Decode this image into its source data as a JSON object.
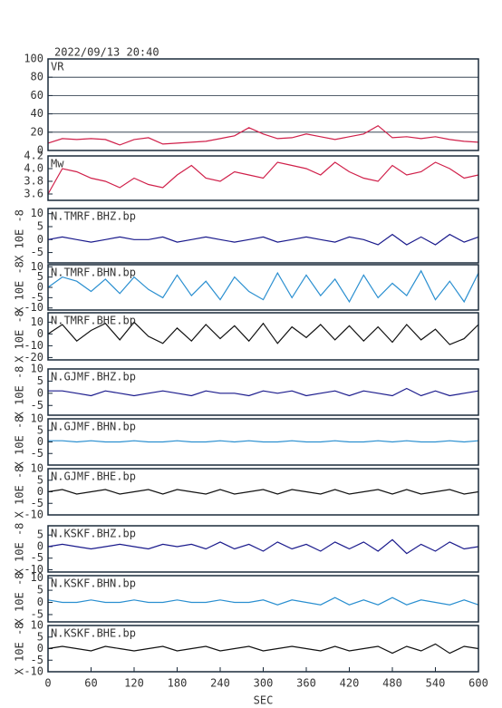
{
  "header": {
    "title": "2022/09/13 20:40"
  },
  "chart_data": [
    {
      "type": "line",
      "xlim": [
        0,
        600
      ],
      "ylim": [
        0,
        100
      ],
      "yticks": [
        0,
        20,
        40,
        60,
        80,
        100
      ],
      "grid": true,
      "x": [
        0,
        20,
        40,
        60,
        80,
        100,
        120,
        140,
        160,
        180,
        200,
        220,
        240,
        260,
        280,
        300,
        320,
        340,
        360,
        380,
        400,
        420,
        440,
        460,
        480,
        500,
        520,
        540,
        560,
        580,
        600
      ],
      "series": [
        {
          "name": "VR",
          "color": "#d0204a",
          "values": [
            8,
            13,
            12,
            13,
            12,
            6,
            12,
            14,
            7,
            8,
            9,
            10,
            13,
            16,
            25,
            18,
            13,
            14,
            18,
            15,
            12,
            15,
            18,
            27,
            14,
            15,
            13,
            15,
            12,
            10,
            9
          ]
        }
      ]
    },
    {
      "type": "line",
      "xlim": [
        0,
        600
      ],
      "ylim": [
        3.5,
        4.2
      ],
      "yticks": [
        {
          "value": 3.6,
          "label": "3.6"
        },
        {
          "value": 3.8,
          "label": "3.8"
        },
        {
          "value": 4.0,
          "label": "4.0"
        },
        {
          "value": 4.2,
          "label": "4.2"
        }
      ],
      "grid": false,
      "x": [
        0,
        20,
        40,
        60,
        80,
        100,
        120,
        140,
        160,
        180,
        200,
        220,
        240,
        260,
        280,
        300,
        320,
        340,
        360,
        380,
        400,
        420,
        440,
        460,
        480,
        500,
        520,
        540,
        560,
        580,
        600
      ],
      "series": [
        {
          "name": "Mw",
          "color": "#d0204a",
          "values": [
            3.6,
            4.0,
            3.95,
            3.85,
            3.8,
            3.7,
            3.85,
            3.75,
            3.7,
            3.9,
            4.05,
            3.85,
            3.8,
            3.95,
            3.9,
            3.85,
            4.1,
            4.05,
            4.0,
            3.9,
            4.1,
            3.95,
            3.85,
            3.8,
            4.05,
            3.9,
            3.95,
            4.1,
            4.0,
            3.85,
            3.9
          ]
        }
      ]
    },
    {
      "type": "line",
      "xlim": [
        0,
        600
      ],
      "ylim": [
        -9,
        12
      ],
      "yticks": [
        -5,
        0,
        5,
        10
      ],
      "grid": false,
      "ylabel": "X 10E -8",
      "x": [
        0,
        20,
        40,
        60,
        80,
        100,
        120,
        140,
        160,
        180,
        200,
        220,
        240,
        260,
        280,
        300,
        320,
        340,
        360,
        380,
        400,
        420,
        440,
        460,
        480,
        500,
        520,
        540,
        560,
        580,
        600
      ],
      "series": [
        {
          "name": "N.TMRF.BHZ.bp",
          "color": "#1a1a8c",
          "values": [
            0,
            1,
            0,
            -1,
            0,
            1,
            0,
            0,
            1,
            -1,
            0,
            1,
            0,
            -1,
            0,
            1,
            -1,
            0,
            1,
            0,
            -1,
            1,
            0,
            -2,
            2,
            -2,
            1,
            -2,
            2,
            -1,
            1
          ]
        }
      ]
    },
    {
      "type": "line",
      "xlim": [
        0,
        600
      ],
      "ylim": [
        -11,
        11
      ],
      "yticks": [
        -10,
        -5,
        0,
        5,
        10
      ],
      "grid": false,
      "ylabel": "X 10E -8",
      "x": [
        0,
        20,
        40,
        60,
        80,
        100,
        120,
        140,
        160,
        180,
        200,
        220,
        240,
        260,
        280,
        300,
        320,
        340,
        360,
        380,
        400,
        420,
        440,
        460,
        480,
        500,
        520,
        540,
        560,
        580,
        600
      ],
      "series": [
        {
          "name": "N.TMRF.BHN.bp",
          "color": "#2a8fd0",
          "values": [
            0,
            5,
            3,
            -2,
            4,
            -3,
            5,
            -1,
            -5,
            6,
            -4,
            3,
            -6,
            5,
            -2,
            -6,
            7,
            -5,
            6,
            -4,
            4,
            -7,
            6,
            -5,
            2,
            -4,
            8,
            -6,
            3,
            -7,
            7
          ]
        }
      ]
    },
    {
      "type": "line",
      "xlim": [
        0,
        600
      ],
      "ylim": [
        -22,
        18
      ],
      "yticks": [
        -20,
        -10,
        0,
        10
      ],
      "grid": false,
      "ylabel": "X 10E -8",
      "x": [
        0,
        20,
        40,
        60,
        80,
        100,
        120,
        140,
        160,
        180,
        200,
        220,
        240,
        260,
        280,
        300,
        320,
        340,
        360,
        380,
        400,
        420,
        440,
        460,
        480,
        500,
        520,
        540,
        560,
        580,
        600
      ],
      "series": [
        {
          "name": "N.TMRF.BHE.bp",
          "color": "#111111",
          "values": [
            0,
            8,
            -6,
            3,
            9,
            -5,
            10,
            -2,
            -8,
            5,
            -6,
            8,
            -4,
            7,
            -6,
            9,
            -8,
            6,
            -3,
            8,
            -5,
            7,
            -6,
            6,
            -7,
            8,
            -5,
            4,
            -9,
            -4,
            8
          ]
        }
      ]
    },
    {
      "type": "line",
      "xlim": [
        0,
        600
      ],
      "ylim": [
        -9,
        10
      ],
      "yticks": [
        -5,
        0,
        5,
        10
      ],
      "grid": false,
      "ylabel": "X 10E -8",
      "x": [
        0,
        20,
        40,
        60,
        80,
        100,
        120,
        140,
        160,
        180,
        200,
        220,
        240,
        260,
        280,
        300,
        320,
        340,
        360,
        380,
        400,
        420,
        440,
        460,
        480,
        500,
        520,
        540,
        560,
        580,
        600
      ],
      "series": [
        {
          "name": "N.GJMF.BHZ.bp",
          "color": "#1a1a8c",
          "values": [
            1,
            1,
            0,
            -1,
            1,
            0,
            -1,
            0,
            1,
            0,
            -1,
            1,
            0,
            0,
            -1,
            1,
            0,
            1,
            -1,
            0,
            1,
            -1,
            1,
            0,
            -1,
            2,
            -1,
            1,
            -1,
            0,
            1
          ]
        }
      ]
    },
    {
      "type": "line",
      "xlim": [
        0,
        600
      ],
      "ylim": [
        -10,
        10
      ],
      "yticks": [
        -5,
        0,
        5,
        10
      ],
      "grid": false,
      "ylabel": "X 10E -8",
      "x": [
        0,
        20,
        40,
        60,
        80,
        100,
        120,
        140,
        160,
        180,
        200,
        220,
        240,
        260,
        280,
        300,
        320,
        340,
        360,
        380,
        400,
        420,
        440,
        460,
        480,
        500,
        520,
        540,
        560,
        580,
        600
      ],
      "series": [
        {
          "name": "N.GJMF.BHN.bp",
          "color": "#2a8fd0",
          "values": [
            0.5,
            0.5,
            0,
            0.5,
            0,
            0,
            0.5,
            0,
            0,
            0.5,
            0,
            0,
            0.5,
            0,
            0.5,
            0,
            0,
            0.5,
            0,
            0,
            0.5,
            0,
            0,
            0.5,
            0,
            0.5,
            0,
            0,
            0.5,
            0,
            0.5
          ]
        }
      ]
    },
    {
      "type": "line",
      "xlim": [
        0,
        600
      ],
      "ylim": [
        -10,
        10
      ],
      "yticks": [
        -10,
        -5,
        0,
        5,
        10
      ],
      "grid": false,
      "ylabel": "X 10E -8",
      "x": [
        0,
        20,
        40,
        60,
        80,
        100,
        120,
        140,
        160,
        180,
        200,
        220,
        240,
        260,
        280,
        300,
        320,
        340,
        360,
        380,
        400,
        420,
        440,
        460,
        480,
        500,
        520,
        540,
        560,
        580,
        600
      ],
      "series": [
        {
          "name": "N.GJMF.BHE.bp",
          "color": "#111111",
          "values": [
            0,
            1,
            -1,
            0,
            1,
            -1,
            0,
            1,
            -1,
            1,
            0,
            -1,
            1,
            -1,
            0,
            1,
            -1,
            1,
            0,
            -1,
            1,
            -1,
            0,
            1,
            -1,
            1,
            -1,
            0,
            1,
            -1,
            0
          ]
        }
      ]
    },
    {
      "type": "line",
      "xlim": [
        0,
        600
      ],
      "ylim": [
        -11,
        9
      ],
      "yticks": [
        -10,
        -5,
        0,
        5
      ],
      "grid": false,
      "ylabel": "X 10E -8",
      "x": [
        0,
        20,
        40,
        60,
        80,
        100,
        120,
        140,
        160,
        180,
        200,
        220,
        240,
        260,
        280,
        300,
        320,
        340,
        360,
        380,
        400,
        420,
        440,
        460,
        480,
        500,
        520,
        540,
        560,
        580,
        600
      ],
      "series": [
        {
          "name": "N.KSKF.BHZ.bp",
          "color": "#1a1a8c",
          "values": [
            0,
            1,
            0,
            -1,
            0,
            1,
            0,
            -1,
            1,
            0,
            1,
            -1,
            2,
            -1,
            1,
            -2,
            2,
            -1,
            1,
            -2,
            2,
            -1,
            2,
            -2,
            3,
            -3,
            1,
            -2,
            2,
            -1,
            0
          ]
        }
      ]
    },
    {
      "type": "line",
      "xlim": [
        0,
        600
      ],
      "ylim": [
        -8,
        11
      ],
      "yticks": [
        -5,
        0,
        5,
        10
      ],
      "grid": false,
      "ylabel": "X 10E -8",
      "x": [
        0,
        20,
        40,
        60,
        80,
        100,
        120,
        140,
        160,
        180,
        200,
        220,
        240,
        260,
        280,
        300,
        320,
        340,
        360,
        380,
        400,
        420,
        440,
        460,
        480,
        500,
        520,
        540,
        560,
        580,
        600
      ],
      "series": [
        {
          "name": "N.KSKF.BHN.bp",
          "color": "#2a8fd0",
          "values": [
            1,
            0,
            0,
            1,
            0,
            0,
            1,
            0,
            0,
            1,
            0,
            0,
            1,
            0,
            0,
            1,
            -1,
            1,
            0,
            -1,
            2,
            -1,
            1,
            -1,
            2,
            -1,
            1,
            0,
            -1,
            1,
            -1
          ]
        }
      ]
    },
    {
      "type": "line",
      "xlim": [
        0,
        600
      ],
      "ylim": [
        -10,
        10
      ],
      "yticks": [
        -10,
        -5,
        0,
        5,
        10
      ],
      "grid": false,
      "ylabel": "X 10E -8",
      "xlabel": "SEC",
      "xticks": [
        0,
        60,
        120,
        180,
        240,
        300,
        360,
        420,
        480,
        540,
        600
      ],
      "x": [
        0,
        20,
        40,
        60,
        80,
        100,
        120,
        140,
        160,
        180,
        200,
        220,
        240,
        260,
        280,
        300,
        320,
        340,
        360,
        380,
        400,
        420,
        440,
        460,
        480,
        500,
        520,
        540,
        560,
        580,
        600
      ],
      "series": [
        {
          "name": "N.KSKF.BHE.bp",
          "color": "#111111",
          "values": [
            0,
            1,
            0,
            -1,
            1,
            0,
            -1,
            0,
            1,
            -1,
            0,
            1,
            -1,
            0,
            1,
            -1,
            0,
            1,
            0,
            -1,
            1,
            -1,
            0,
            1,
            -2,
            1,
            -1,
            2,
            -2,
            1,
            0
          ]
        }
      ]
    }
  ]
}
